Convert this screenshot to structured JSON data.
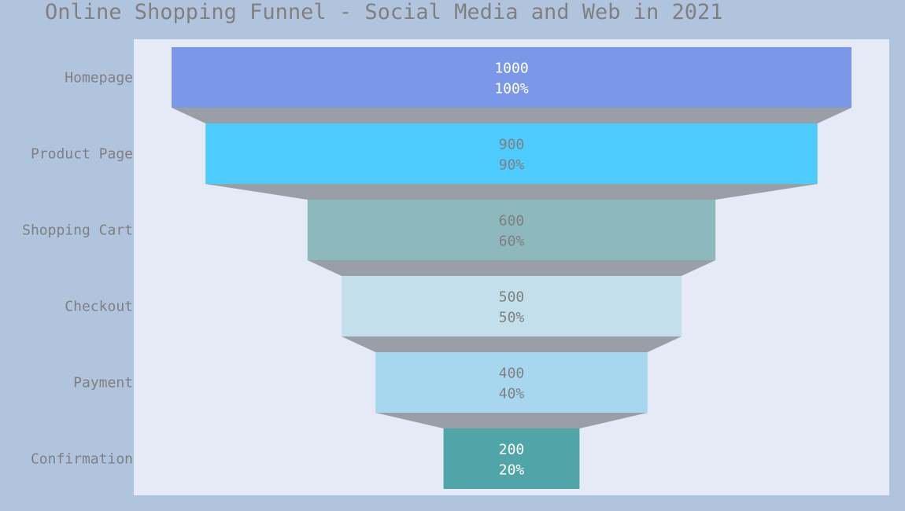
{
  "chart_data": {
    "type": "funnel",
    "title": "Online Shopping Funnel - Social Media and Web in 2021",
    "categories": [
      "Homepage",
      "Product Page",
      "Shopping Cart",
      "Checkout",
      "Payment",
      "Confirmation"
    ],
    "values": [
      1000,
      900,
      600,
      500,
      400,
      200
    ],
    "percent_labels": [
      "100%",
      "90%",
      "60%",
      "50%",
      "40%",
      "20%"
    ],
    "colors": [
      "#7b98e8",
      "#4dcbfd",
      "#8db8be",
      "#c2dfeb",
      "#a7d7ee",
      "#50a5a8"
    ],
    "label_colors": [
      "#ffffff",
      "#808080",
      "#808080",
      "#808080",
      "#808080",
      "#ffffff"
    ],
    "connector_color": "#9a9ea6",
    "plot_background": "#e4ebf6",
    "paper_background": "#b0c4de"
  }
}
